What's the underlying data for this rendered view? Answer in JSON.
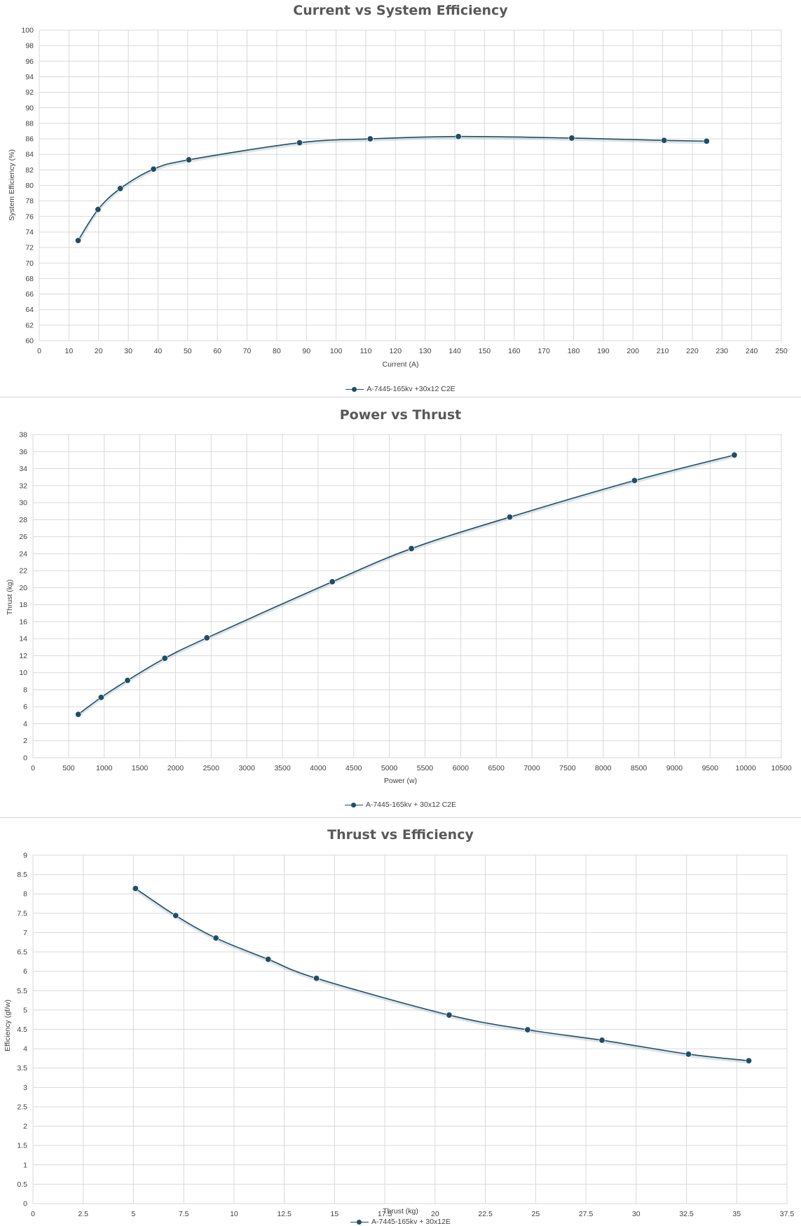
{
  "chart_data": [
    {
      "type": "line",
      "title": "Current vs System Efficiency",
      "xlabel": "Current (A)",
      "ylabel": "System Efficiency (%)",
      "xlim": [
        0,
        250
      ],
      "ylim": [
        60,
        100
      ],
      "xticks": [
        0,
        10,
        20,
        30,
        40,
        50,
        60,
        70,
        80,
        90,
        100,
        110,
        120,
        130,
        140,
        150,
        160,
        170,
        180,
        190,
        200,
        210,
        220,
        230,
        240,
        250
      ],
      "yticks": [
        60,
        62,
        64,
        66,
        68,
        70,
        72,
        74,
        76,
        78,
        80,
        82,
        84,
        86,
        88,
        90,
        92,
        94,
        96,
        98,
        100
      ],
      "grid": true,
      "smooth": true,
      "legend_position": "bottom",
      "series": [
        {
          "name": "A-7445-165kv +30x12 C2E",
          "color": "#1f4e66",
          "x": [
            13.1,
            19.8,
            27.3,
            38.5,
            50.4,
            87.7,
            111.5,
            141.2,
            179.4,
            210.5,
            224.8
          ],
          "y": [
            72.9,
            76.9,
            79.6,
            82.1,
            83.3,
            85.5,
            86.0,
            86.3,
            86.1,
            85.8,
            85.7
          ]
        }
      ]
    },
    {
      "type": "line",
      "title": "Power vs Thrust",
      "xlabel": "Power (w)",
      "ylabel": "Thrust (kg)",
      "xlim": [
        0,
        10500
      ],
      "ylim": [
        0,
        38
      ],
      "xticks": [
        0,
        500,
        1000,
        1500,
        2000,
        2500,
        3000,
        3500,
        4000,
        4500,
        5000,
        5500,
        6000,
        6500,
        7000,
        7500,
        8000,
        8500,
        9000,
        9500,
        10000,
        10500
      ],
      "yticks": [
        0,
        2,
        4,
        6,
        8,
        10,
        12,
        14,
        16,
        18,
        20,
        22,
        24,
        26,
        28,
        30,
        32,
        34,
        36,
        38
      ],
      "grid": true,
      "smooth": true,
      "legend_position": "bottom",
      "series": [
        {
          "name": "A-7445-165kv + 30x12 C2E",
          "color": "#1f4e66",
          "x": [
            636,
            957,
            1327,
            1850,
            2440,
            4200,
            5310,
            6690,
            8440,
            9840
          ],
          "y": [
            5.1,
            7.1,
            9.1,
            11.7,
            14.1,
            20.7,
            24.6,
            28.3,
            32.6,
            35.6
          ]
        }
      ]
    },
    {
      "type": "line",
      "title": "Thrust vs Efficiency",
      "xlabel": "Thrust (kg)",
      "ylabel": "Efficiency (gf/w)",
      "xlim": [
        0,
        37.5
      ],
      "ylim": [
        0,
        9
      ],
      "xticks": [
        0,
        2.5,
        5,
        7.5,
        10,
        12.5,
        15,
        17.5,
        20,
        22.5,
        25,
        27.5,
        30,
        32.5,
        35,
        37.5
      ],
      "yticks": [
        0,
        0.5,
        1,
        1.5,
        2,
        2.5,
        3,
        3.5,
        4,
        4.5,
        5,
        5.5,
        6,
        6.5,
        7,
        7.5,
        8,
        8.5,
        9
      ],
      "grid": true,
      "smooth": true,
      "legend_position": "bottom",
      "series": [
        {
          "name": "A-7445-165kv + 30x12E",
          "color": "#1f4e66",
          "x": [
            5.1,
            7.1,
            9.1,
            11.7,
            14.1,
            20.7,
            24.6,
            28.3,
            32.6,
            35.6
          ],
          "y": [
            8.14,
            7.44,
            6.86,
            6.31,
            5.82,
            4.87,
            4.49,
            4.22,
            3.86,
            3.69
          ]
        }
      ]
    }
  ]
}
